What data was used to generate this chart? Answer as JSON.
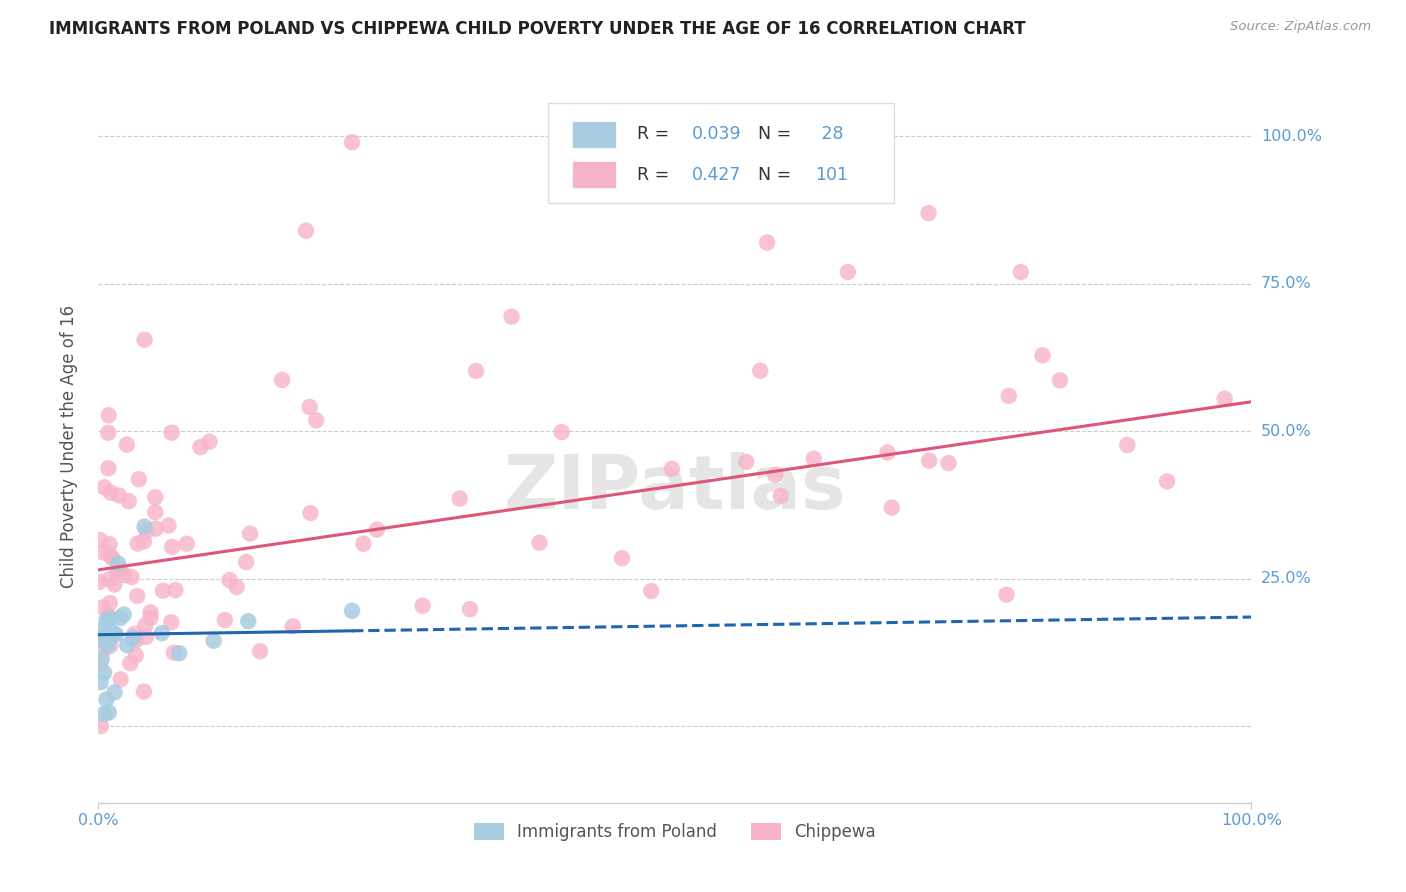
{
  "title": "IMMIGRANTS FROM POLAND VS CHIPPEWA CHILD POVERTY UNDER THE AGE OF 16 CORRELATION CHART",
  "source": "Source: ZipAtlas.com",
  "ylabel": "Child Poverty Under the Age of 16",
  "legend_label1": "Immigrants from Poland",
  "legend_label2": "Chippewa",
  "color_blue_scatter": "#a8cce0",
  "color_pink_scatter": "#f7b3c8",
  "color_blue_line": "#2166ac",
  "color_pink_line": "#e05577",
  "color_axis_text": "#5b9bd5",
  "color_grid": "#cccccc",
  "color_title": "#222222",
  "color_source": "#999999",
  "color_watermark": "#e5e5e5",
  "color_ylabel": "#555555",
  "legend_r1_val": "0.039",
  "legend_n1_val": " 28",
  "legend_r2_val": "0.427",
  "legend_n2_val": "101",
  "xlim_min": 0.0,
  "xlim_max": 1.0,
  "ylim_min": -0.13,
  "ylim_max": 1.08,
  "yticks": [
    0.0,
    0.25,
    0.5,
    0.75,
    1.0
  ],
  "ytick_labels": [
    "",
    "25.0%",
    "50.0%",
    "75.0%",
    "100.0%"
  ],
  "xtick_labels": [
    "0.0%",
    "100.0%"
  ],
  "pink_intercept": 0.265,
  "pink_slope": 0.285,
  "blue_intercept": 0.155,
  "blue_slope": 0.03
}
